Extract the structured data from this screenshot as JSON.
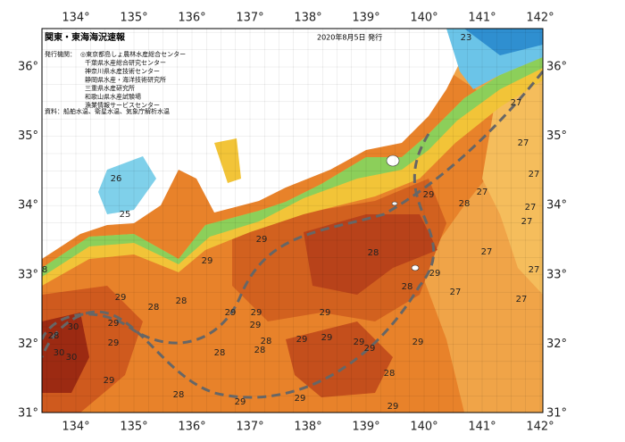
{
  "header": {
    "title": "関東・東海海況速報",
    "date": "2020年8月5日 発行"
  },
  "publisher": {
    "label": "発行機関：",
    "items": [
      "◎東京都島しょ農林水産総合センター",
      "千葉県水産総合研究センター",
      "神奈川県水産技術センター",
      "静岡県水産・海洋技術研究所",
      "三重県水産研究所",
      "和歌山県水産試験場",
      "漁業情報サービスセンター"
    ]
  },
  "source": "資料：船舶水温、衛星水温、気象庁解析水温",
  "longitude_labels": [
    "134°",
    "135°",
    "136°",
    "137°",
    "138°",
    "139°",
    "140°",
    "141°",
    "142°"
  ],
  "latitude_labels": [
    "36°",
    "35°",
    "34°",
    "33°",
    "32°",
    "31°"
  ],
  "contour_labels": [
    "23",
    "27",
    "27",
    "27",
    "27",
    "28",
    "29",
    "27",
    "27",
    "26",
    "25",
    "29",
    "29",
    "28",
    "27",
    "29",
    "27",
    "28",
    "27",
    "27",
    "29",
    "28",
    "28",
    "29",
    "29",
    "29",
    "29",
    "29",
    "28",
    "28",
    "30",
    "30",
    "30",
    "29",
    "28",
    "29",
    "29",
    "29",
    "29",
    "29",
    "28",
    "28",
    "29",
    "29",
    "28",
    "29",
    "8",
    "29"
  ]
}
